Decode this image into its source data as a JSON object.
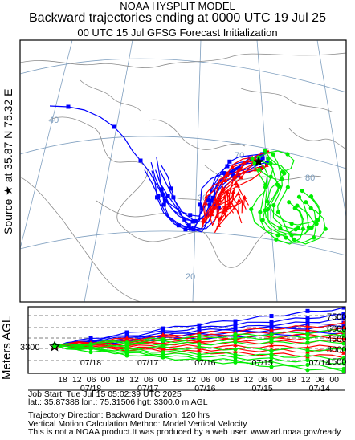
{
  "header": {
    "line1": "NOAA HYSPLIT MODEL",
    "line2": "Backward trajectories ending at 0000 UTC 19 Jul 25",
    "line3": "00 UTC 15 Jul    GFSG  Forecast Initialization"
  },
  "side_labels": {
    "source": "Source ★ at   35.87 N   75.32 E",
    "meters": "Meters AGL"
  },
  "map": {
    "lat_labels": [
      "40",
      "30",
      "20"
    ],
    "lon_labels": [
      "70",
      "80"
    ],
    "colors": {
      "blue": "#0000ff",
      "red": "#ff0000",
      "green": "#00ee00",
      "grid": "#7f9fbf",
      "coast": "#8c8c8c"
    }
  },
  "profile": {
    "source_height": "3300",
    "right_labels": [
      "7500",
      "6000",
      "4500",
      "3000",
      "1500"
    ],
    "hour_labels": [
      "18",
      "12",
      "06",
      "00",
      "18",
      "12",
      "06",
      "00",
      "18",
      "12",
      "06",
      "00",
      "18",
      "12",
      "06",
      "00",
      "18",
      "12",
      "06",
      "00"
    ],
    "date_labels": [
      "07/18",
      "07/17",
      "07/16",
      "07/15",
      "07/14"
    ]
  },
  "footer": {
    "job": "Job Start: Tue Jul 15 05:02:39 UTC 2025",
    "location": "lat.: 35.87388    lon.: 75.31506    hgt: 3300.0 m AGL",
    "direction": "Trajectory Direction: Backward          Duration: 120 hrs",
    "vertical": "Vertical Motion Calculation Method: Model Vertical Velocity",
    "disclaimer": "This is not a NOAA product.It was produced by a web user. www.arl.noaa.gov/ready"
  }
}
